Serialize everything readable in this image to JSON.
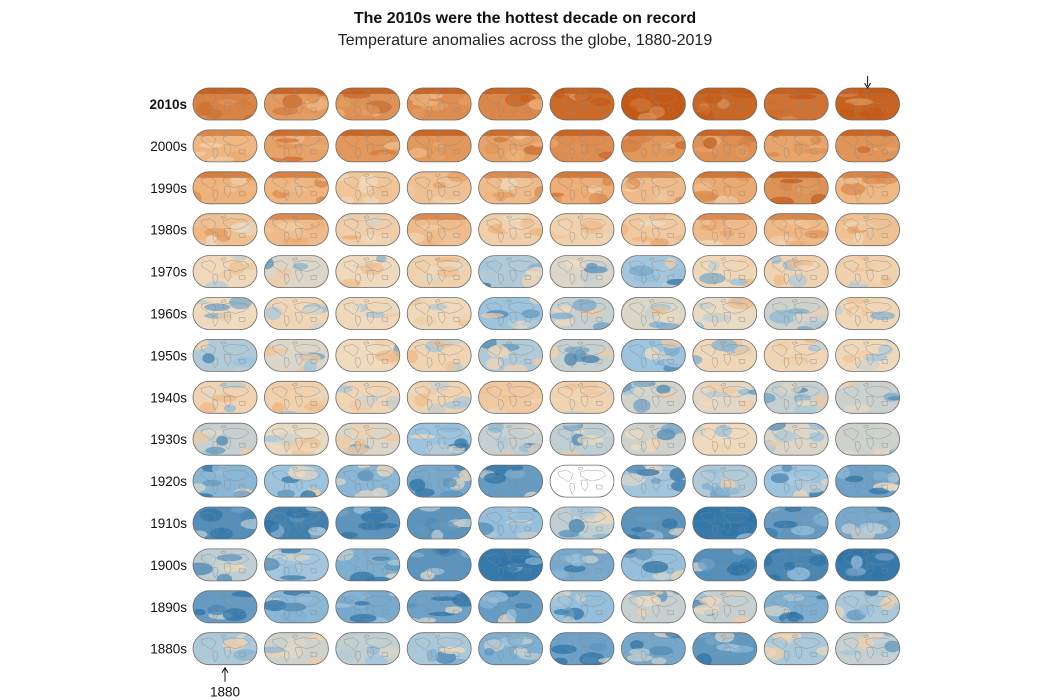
{
  "title": "The 2010s were the hottest decade on record",
  "subtitle": "Temperature anomalies across the globe, 1880-2019",
  "start_annotation": "1880",
  "colors": {
    "hot": "#c45a16",
    "warm": "#efb27a",
    "neutral": "#f0dcc0",
    "cool": "#9cc4df",
    "cold": "#2f74a7",
    "nodata": "#ffffff",
    "outline": "#6b6b6b"
  },
  "chart_data": {
    "type": "heatmap",
    "description_level": "small-multiple world maps",
    "rows": [
      {
        "decade": "2010s",
        "bold": true,
        "start_year": 2010,
        "anomaly": [
          0.75,
          0.6,
          0.65,
          0.68,
          0.72,
          0.9,
          1.0,
          0.92,
          0.85,
          0.95
        ]
      },
      {
        "decade": "2000s",
        "bold": false,
        "start_year": 2000,
        "anomaly": [
          0.4,
          0.55,
          0.62,
          0.62,
          0.55,
          0.68,
          0.62,
          0.66,
          0.54,
          0.64
        ]
      },
      {
        "decade": "1990s",
        "bold": false,
        "start_year": 1990,
        "anomaly": [
          0.45,
          0.42,
          0.25,
          0.3,
          0.35,
          0.48,
          0.35,
          0.5,
          0.65,
          0.4
        ]
      },
      {
        "decade": "1980s",
        "bold": false,
        "start_year": 1980,
        "anomaly": [
          0.3,
          0.35,
          0.15,
          0.35,
          0.15,
          0.12,
          0.2,
          0.35,
          0.38,
          0.28
        ]
      },
      {
        "decade": "1970s",
        "bold": false,
        "start_year": 1970,
        "anomaly": [
          0.03,
          -0.05,
          0.02,
          0.12,
          -0.15,
          -0.05,
          -0.18,
          0.05,
          0.1,
          0.12
        ]
      },
      {
        "decade": "1960s",
        "bold": false,
        "start_year": 1960,
        "anomaly": [
          0.01,
          0.06,
          0.03,
          0.04,
          -0.2,
          -0.1,
          -0.05,
          -0.02,
          -0.08,
          0.05
        ]
      },
      {
        "decade": "1950s",
        "bold": false,
        "start_year": 1950,
        "anomaly": [
          -0.15,
          -0.05,
          0.01,
          0.08,
          -0.15,
          -0.1,
          -0.2,
          0.05,
          0.06,
          0.03
        ]
      },
      {
        "decade": "1940s",
        "bold": false,
        "start_year": 1940,
        "anomaly": [
          0.1,
          0.12,
          0.07,
          0.09,
          0.2,
          0.09,
          -0.07,
          -0.03,
          -0.1,
          -0.09
        ]
      },
      {
        "decade": "1930s",
        "bold": false,
        "start_year": 1930,
        "anomaly": [
          -0.1,
          -0.02,
          -0.05,
          -0.2,
          -0.1,
          -0.12,
          -0.08,
          0.02,
          -0.05,
          -0.08
        ]
      },
      {
        "decade": "1920s",
        "bold": false,
        "start_year": 1920,
        "anomaly": [
          -0.25,
          -0.2,
          -0.25,
          -0.3,
          -0.35,
          null,
          -0.18,
          -0.15,
          -0.2,
          -0.33
        ]
      },
      {
        "decade": "1910s",
        "bold": false,
        "start_year": 1910,
        "anomaly": [
          -0.4,
          -0.45,
          -0.38,
          -0.38,
          -0.22,
          -0.12,
          -0.38,
          -0.48,
          -0.35,
          -0.3
        ]
      },
      {
        "decade": "1900s",
        "bold": false,
        "start_year": 1900,
        "anomaly": [
          -0.12,
          -0.18,
          -0.28,
          -0.38,
          -0.48,
          -0.3,
          -0.22,
          -0.4,
          -0.43,
          -0.48
        ]
      },
      {
        "decade": "1890s",
        "bold": false,
        "start_year": 1890,
        "anomaly": [
          -0.35,
          -0.25,
          -0.3,
          -0.33,
          -0.35,
          -0.22,
          -0.1,
          -0.1,
          -0.28,
          -0.17
        ]
      },
      {
        "decade": "1880s",
        "bold": false,
        "start_year": 1880,
        "anomaly": [
          -0.16,
          -0.08,
          -0.11,
          -0.17,
          -0.28,
          -0.33,
          -0.31,
          -0.36,
          -0.17,
          -0.1
        ]
      }
    ],
    "highlight": {
      "year": 2019,
      "marker": "arrow-down"
    },
    "start_marker": {
      "year": 1880,
      "label": "1880",
      "marker": "arrow-up"
    }
  }
}
